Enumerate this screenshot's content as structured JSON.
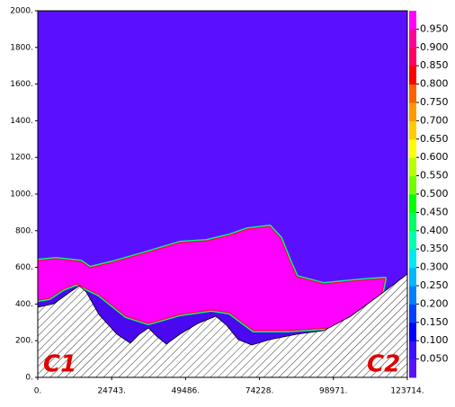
{
  "chart_data": {
    "type": "contour",
    "xlim": [
      0,
      123714
    ],
    "ylim": [
      0,
      2000
    ],
    "xticks": [
      {
        "value": 0,
        "label": "0."
      },
      {
        "value": 24743,
        "label": "24743."
      },
      {
        "value": 49486,
        "label": "49486."
      },
      {
        "value": 74228,
        "label": "74228."
      },
      {
        "value": 98971,
        "label": "98971."
      },
      {
        "value": 123714,
        "label": "123714."
      }
    ],
    "yticks": [
      {
        "value": 0,
        "label": "0."
      },
      {
        "value": 200,
        "label": "200."
      },
      {
        "value": 400,
        "label": "400."
      },
      {
        "value": 600,
        "label": "600."
      },
      {
        "value": 800,
        "label": "800."
      },
      {
        "value": 1000,
        "label": "1000."
      },
      {
        "value": 1200,
        "label": "1200."
      },
      {
        "value": 1400,
        "label": "1400."
      },
      {
        "value": 1600,
        "label": "1600."
      },
      {
        "value": 1800,
        "label": "1800."
      },
      {
        "value": 2000,
        "label": "2000."
      }
    ],
    "colorbar": {
      "lim": [
        0,
        1
      ],
      "colors": [
        "#5a10ff",
        "#3a10ff",
        "#0000ff",
        "#0040ff",
        "#0080ff",
        "#00b8ff",
        "#00e8f0",
        "#00ffb0",
        "#00ff60",
        "#00ff00",
        "#70ff00",
        "#b8ff00",
        "#ffff00",
        "#ffcc00",
        "#ff9900",
        "#ff6000",
        "#ff0000",
        "#ff0060",
        "#ff0098",
        "#ff00ff"
      ],
      "ticks": [
        {
          "value": 0.05,
          "label": "0.050"
        },
        {
          "value": 0.1,
          "label": "0.100"
        },
        {
          "value": 0.15,
          "label": "0.150"
        },
        {
          "value": 0.2,
          "label": "0.200"
        },
        {
          "value": 0.25,
          "label": "0.250"
        },
        {
          "value": 0.3,
          "label": "0.300"
        },
        {
          "value": 0.35,
          "label": "0.350"
        },
        {
          "value": 0.4,
          "label": "0.400"
        },
        {
          "value": 0.45,
          "label": "0.450"
        },
        {
          "value": 0.5,
          "label": "0.500"
        },
        {
          "value": 0.55,
          "label": "0.550"
        },
        {
          "value": 0.6,
          "label": "0.600"
        },
        {
          "value": 0.65,
          "label": "0.650"
        },
        {
          "value": 0.7,
          "label": "0.700"
        },
        {
          "value": 0.75,
          "label": "0.750"
        },
        {
          "value": 0.8,
          "label": "0.800"
        },
        {
          "value": 0.85,
          "label": "0.850"
        },
        {
          "value": 0.9,
          "label": "0.900"
        },
        {
          "value": 0.95,
          "label": "0.950"
        }
      ]
    },
    "annotations": [
      "C1",
      "C2"
    ]
  }
}
